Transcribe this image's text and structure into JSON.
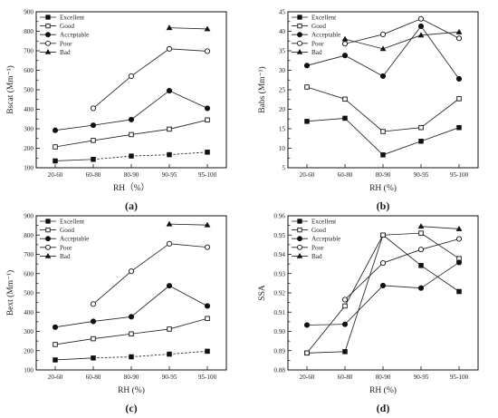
{
  "chart_data": [
    {
      "type": "line",
      "panel_label": "(a)",
      "xlabel": "RH（%）",
      "ylabel": "Bscat (Mm⁻¹)",
      "categories": [
        "20-60",
        "60-80",
        "80-90",
        "90-95",
        "95-100"
      ],
      "ylim": [
        100,
        900
      ],
      "yticks": [
        100,
        200,
        300,
        400,
        500,
        600,
        700,
        800,
        900
      ],
      "legend_position": "top-left",
      "grid": false,
      "series": [
        {
          "name": "Excellent",
          "marker": "filled-square",
          "dashed_from": 1,
          "values": [
            135,
            143,
            160,
            167,
            180
          ]
        },
        {
          "name": "Good",
          "marker": "open-square",
          "values": [
            207,
            240,
            270,
            298,
            345
          ]
        },
        {
          "name": "Acceptable",
          "marker": "filled-circle",
          "values": [
            292,
            318,
            347,
            495,
            405
          ]
        },
        {
          "name": "Poor",
          "marker": "open-circle",
          "values": [
            null,
            405,
            570,
            710,
            698
          ]
        },
        {
          "name": "Bad",
          "marker": "filled-triangle",
          "values": [
            null,
            null,
            null,
            818,
            812
          ]
        }
      ]
    },
    {
      "type": "line",
      "panel_label": "(b)",
      "xlabel": "RH (%)",
      "ylabel": "Babs (Mm⁻¹)",
      "categories": [
        "20-60",
        "60-80",
        "80-90",
        "90-95",
        "95-100"
      ],
      "ylim": [
        5,
        45
      ],
      "yticks": [
        5,
        10,
        15,
        20,
        25,
        30,
        35,
        40,
        45
      ],
      "legend_position": "top-left",
      "grid": false,
      "series": [
        {
          "name": "Excellent",
          "marker": "filled-square",
          "values": [
            16.9,
            17.7,
            8.3,
            11.8,
            15.3
          ]
        },
        {
          "name": "Good",
          "marker": "open-square",
          "values": [
            25.7,
            22.6,
            14.3,
            15.3,
            22.7
          ]
        },
        {
          "name": "Acceptable",
          "marker": "filled-circle",
          "values": [
            31.2,
            33.8,
            28.5,
            41.3,
            27.8
          ]
        },
        {
          "name": "Poor",
          "marker": "open-circle",
          "values": [
            null,
            36.8,
            39.2,
            43.2,
            38.2
          ]
        },
        {
          "name": "Bad",
          "marker": "filled-triangle",
          "values": [
            null,
            38.0,
            35.5,
            39.0,
            39.8
          ]
        }
      ]
    },
    {
      "type": "line",
      "panel_label": "(c)",
      "xlabel": "RH (%)",
      "ylabel": "Bext (Mm⁻¹)",
      "categories": [
        "20-60",
        "60-80",
        "80-90",
        "90-95",
        "95-100"
      ],
      "ylim": [
        100,
        900
      ],
      "yticks": [
        100,
        200,
        300,
        400,
        500,
        600,
        700,
        800,
        900
      ],
      "legend_position": "top-left",
      "grid": false,
      "series": [
        {
          "name": "Excellent",
          "marker": "filled-square",
          "dashed_from": 1,
          "values": [
            152,
            162,
            168,
            182,
            197
          ]
        },
        {
          "name": "Good",
          "marker": "open-square",
          "values": [
            232,
            262,
            287,
            312,
            367
          ]
        },
        {
          "name": "Acceptable",
          "marker": "filled-circle",
          "values": [
            322,
            352,
            376,
            537,
            432
          ]
        },
        {
          "name": "Poor",
          "marker": "open-circle",
          "values": [
            null,
            442,
            612,
            755,
            737
          ]
        },
        {
          "name": "Bad",
          "marker": "filled-triangle",
          "values": [
            null,
            null,
            null,
            857,
            852
          ]
        }
      ]
    },
    {
      "type": "line",
      "panel_label": "(d)",
      "xlabel": "RH (%)",
      "ylabel": "SSA",
      "categories": [
        "20-60",
        "60-80",
        "80-90",
        "90-95",
        "95-100"
      ],
      "ylim": [
        0.88,
        0.96
      ],
      "yticks": [
        0.88,
        0.89,
        0.9,
        0.91,
        0.92,
        0.93,
        0.94,
        0.95,
        0.96
      ],
      "legend_position": "top-left",
      "grid": false,
      "series": [
        {
          "name": "Excellent",
          "marker": "filled-square",
          "values": [
            0.8888,
            0.8895,
            0.95,
            0.9342,
            0.9207
          ]
        },
        {
          "name": "Good",
          "marker": "open-square",
          "values": [
            0.8888,
            0.9132,
            0.95,
            0.951,
            0.9378
          ]
        },
        {
          "name": "Acceptable",
          "marker": "filled-circle",
          "values": [
            0.9033,
            0.9037,
            0.9238,
            0.9225,
            0.9358
          ]
        },
        {
          "name": "Poor",
          "marker": "open-circle",
          "values": [
            null,
            0.9165,
            0.9355,
            0.9425,
            0.948
          ]
        },
        {
          "name": "Bad",
          "marker": "filled-triangle",
          "values": [
            null,
            null,
            null,
            0.9545,
            0.9532
          ]
        }
      ]
    }
  ]
}
